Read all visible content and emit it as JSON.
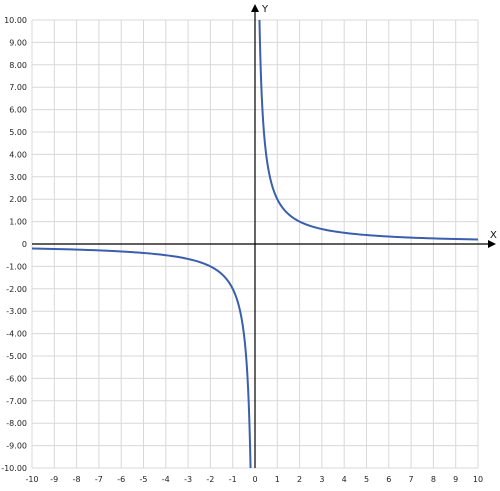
{
  "chart_data": {
    "type": "line",
    "xlabel": "X",
    "ylabel": "Y",
    "xlim": [
      -10,
      10
    ],
    "ylim": [
      -10,
      10
    ],
    "grid": true,
    "xticks": [
      "-10",
      "-9",
      "-8",
      "-7",
      "-6",
      "-5",
      "-4",
      "-3",
      "-2",
      "-1",
      "0",
      "1",
      "2",
      "3",
      "4",
      "5",
      "6",
      "7",
      "8",
      "9",
      "10"
    ],
    "yticks": [
      "-10.00",
      "-9.00",
      "-8.00",
      "-7.00",
      "-6.00",
      "-5.00",
      "-4.00",
      "-3.00",
      "-2.00",
      "-1.00",
      "0",
      "1.00",
      "2.00",
      "3.00",
      "4.00",
      "5.00",
      "6.00",
      "7.00",
      "8.00",
      "9.00",
      "10.00"
    ],
    "series": [
      {
        "color": "#3a5fae",
        "branches": [
          {
            "x": [
              -10,
              -8,
              -6,
              -5,
              -4,
              -3,
              -2,
              -1.5,
              -1,
              -0.8,
              -0.6,
              -0.5,
              -0.4,
              -0.3,
              -0.25,
              -0.2
            ],
            "y": [
              -0.2,
              -0.25,
              -0.333,
              -0.4,
              -0.5,
              -0.667,
              -1,
              -1.333,
              -2,
              -2.5,
              -3.333,
              -4,
              -5,
              -6.667,
              -8,
              -10
            ]
          },
          {
            "x": [
              0.2,
              0.25,
              0.3,
              0.4,
              0.5,
              0.6,
              0.8,
              1,
              1.5,
              2,
              3,
              4,
              5,
              6,
              8,
              10
            ],
            "y": [
              10,
              8,
              6.667,
              5,
              4,
              3.333,
              2.5,
              2,
              1.333,
              1,
              0.667,
              0.5,
              0.4,
              0.333,
              0.25,
              0.2
            ]
          }
        ]
      }
    ],
    "colors": {
      "grid": "#d8d8d8",
      "axis": "#000000",
      "curve": "#3a5fae"
    }
  }
}
